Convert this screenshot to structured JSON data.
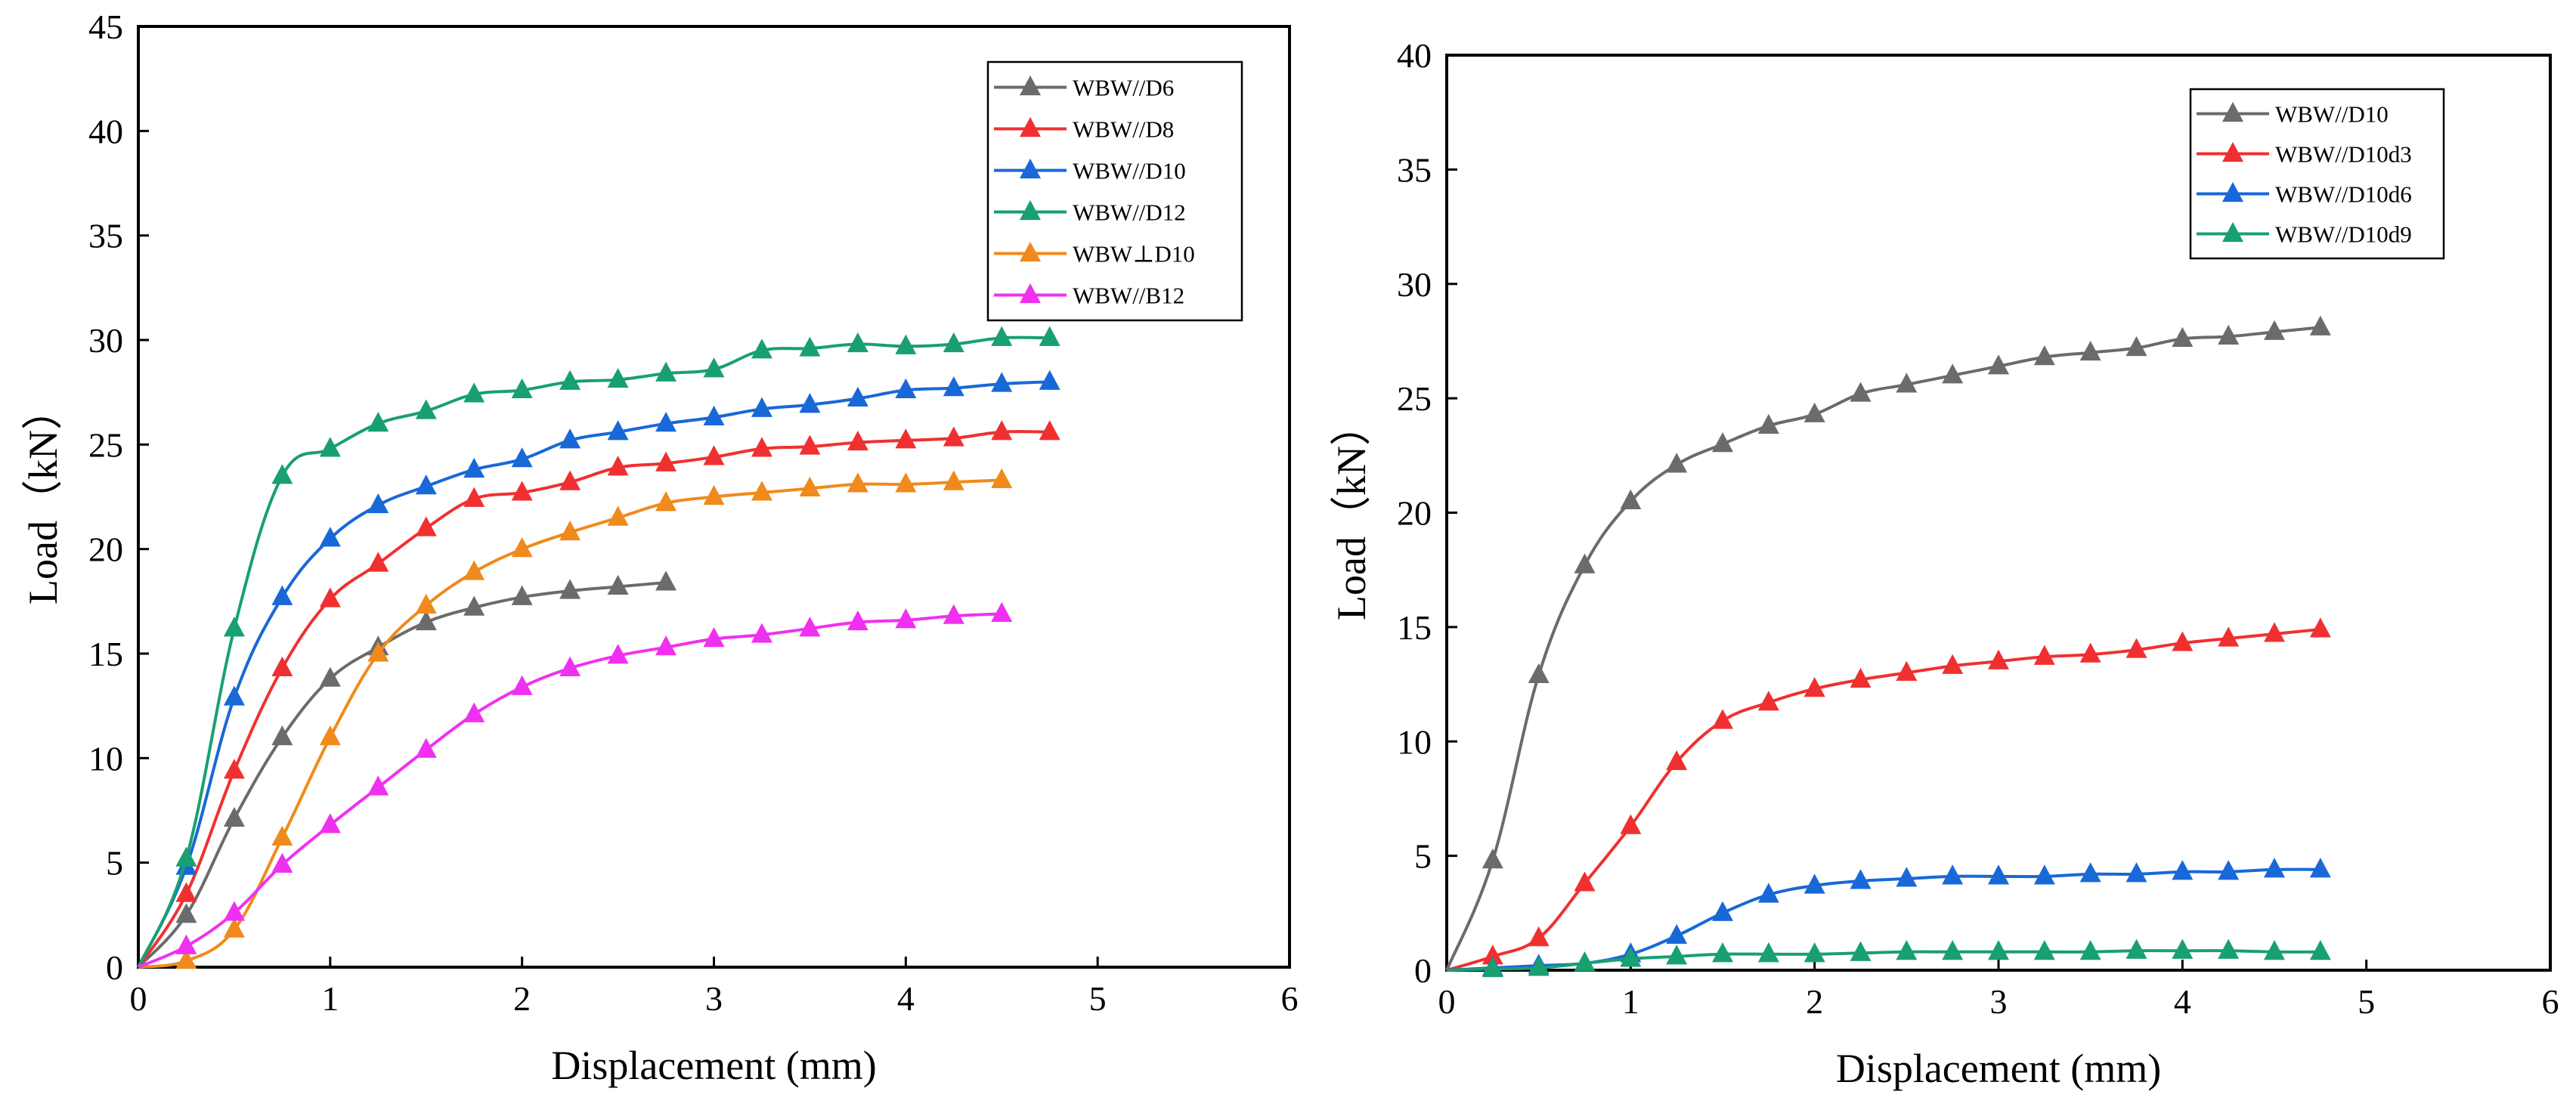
{
  "chart_data": [
    {
      "type": "line",
      "title": "",
      "xlabel": "Displacement (mm)",
      "ylabel": "Load（kN）",
      "xlim": [
        0,
        6
      ],
      "ylim": [
        0,
        45
      ],
      "xticks": [
        0,
        1,
        2,
        3,
        4,
        5,
        6
      ],
      "yticks": [
        0,
        5,
        10,
        15,
        20,
        25,
        30,
        35,
        40,
        45
      ],
      "grid": false,
      "legend_position": "top-right",
      "marker": "triangle",
      "series": [
        {
          "name": "WBW//D6",
          "color": "#6b6b6b",
          "x": [
            0,
            0.25,
            0.5,
            0.75,
            1.0,
            1.25,
            1.5,
            1.75,
            2.0,
            2.25,
            2.5,
            2.75
          ],
          "y": [
            0,
            2.5,
            7.1,
            11.0,
            13.8,
            15.3,
            16.5,
            17.2,
            17.7,
            18.0,
            18.2,
            18.4
          ]
        },
        {
          "name": "WBW//D8",
          "color": "#f03030",
          "x": [
            0,
            0.25,
            0.5,
            0.75,
            1.0,
            1.25,
            1.5,
            1.75,
            2.0,
            2.25,
            2.5,
            2.75,
            3.0,
            3.25,
            3.5,
            3.75,
            4.0,
            4.25,
            4.5,
            4.75
          ],
          "y": [
            0,
            3.5,
            9.4,
            14.3,
            17.6,
            19.3,
            21.0,
            22.4,
            22.7,
            23.2,
            23.9,
            24.1,
            24.4,
            24.8,
            24.9,
            25.1,
            25.2,
            25.3,
            25.6,
            25.6
          ]
        },
        {
          "name": "WBW//D10",
          "color": "#1868d8",
          "x": [
            0,
            0.25,
            0.5,
            0.75,
            1.0,
            1.25,
            1.5,
            1.75,
            2.0,
            2.25,
            2.5,
            2.75,
            3.0,
            3.25,
            3.5,
            3.75,
            4.0,
            4.25,
            4.5,
            4.75
          ],
          "y": [
            0,
            4.8,
            12.9,
            17.7,
            20.5,
            22.1,
            23.0,
            23.8,
            24.3,
            25.2,
            25.6,
            26.0,
            26.3,
            26.7,
            26.9,
            27.2,
            27.6,
            27.7,
            27.9,
            28.0
          ]
        },
        {
          "name": "WBW//D12",
          "color": "#18a070",
          "x": [
            0,
            0.25,
            0.5,
            0.75,
            1.0,
            1.25,
            1.5,
            1.75,
            2.0,
            2.25,
            2.5,
            2.75,
            3.0,
            3.25,
            3.5,
            3.75,
            4.0,
            4.25,
            4.5,
            4.75
          ],
          "y": [
            0,
            5.2,
            16.2,
            23.5,
            24.8,
            26.0,
            26.6,
            27.4,
            27.6,
            28.0,
            28.1,
            28.4,
            28.6,
            29.5,
            29.6,
            29.8,
            29.7,
            29.8,
            30.1,
            30.1
          ]
        },
        {
          "name": "WBW⊥D10",
          "color": "#f08a1c",
          "x": [
            0,
            0.25,
            0.5,
            0.75,
            1.0,
            1.25,
            1.5,
            1.75,
            2.0,
            2.25,
            2.5,
            2.75,
            3.0,
            3.25,
            3.5,
            3.75,
            4.0,
            4.25,
            4.5
          ],
          "y": [
            0,
            0.3,
            1.8,
            6.2,
            11.0,
            15.0,
            17.3,
            18.9,
            20.0,
            20.8,
            21.5,
            22.2,
            22.5,
            22.7,
            22.9,
            23.1,
            23.1,
            23.2,
            23.3
          ]
        },
        {
          "name": "WBW//B12",
          "color": "#f030f0",
          "x": [
            0,
            0.25,
            0.5,
            0.75,
            1.0,
            1.25,
            1.5,
            1.75,
            2.0,
            2.25,
            2.5,
            2.75,
            3.0,
            3.25,
            3.5,
            3.75,
            4.0,
            4.25,
            4.5
          ],
          "y": [
            0,
            1.0,
            2.6,
            4.9,
            6.8,
            8.6,
            10.4,
            12.1,
            13.4,
            14.3,
            14.9,
            15.3,
            15.7,
            15.9,
            16.2,
            16.5,
            16.6,
            16.8,
            16.9
          ]
        }
      ]
    },
    {
      "type": "line",
      "title": "",
      "xlabel": "Displacement (mm)",
      "ylabel": "Load（kN）",
      "xlim": [
        0,
        6
      ],
      "ylim": [
        0,
        40
      ],
      "xticks": [
        0,
        1,
        2,
        3,
        4,
        5,
        6
      ],
      "yticks": [
        0,
        5,
        10,
        15,
        20,
        25,
        30,
        35,
        40
      ],
      "grid": false,
      "legend_position": "top-right",
      "marker": "triangle",
      "series": [
        {
          "name": "WBW//D10",
          "color": "#6b6b6b",
          "x": [
            0,
            0.25,
            0.5,
            0.75,
            1.0,
            1.25,
            1.5,
            1.75,
            2.0,
            2.25,
            2.5,
            2.75,
            3.0,
            3.25,
            3.5,
            3.75,
            4.0,
            4.25,
            4.5,
            4.75
          ],
          "y": [
            0,
            4.8,
            12.9,
            17.7,
            20.5,
            22.1,
            23.0,
            23.8,
            24.3,
            25.2,
            25.6,
            26.0,
            26.4,
            26.8,
            27.0,
            27.2,
            27.6,
            27.7,
            27.9,
            28.1
          ]
        },
        {
          "name": "WBW//D10d3",
          "color": "#f03030",
          "x": [
            0,
            0.25,
            0.5,
            0.75,
            1.0,
            1.25,
            1.5,
            1.75,
            2.0,
            2.25,
            2.5,
            2.75,
            3.0,
            3.25,
            3.5,
            3.75,
            4.0,
            4.25,
            4.5,
            4.75
          ],
          "y": [
            0,
            0.6,
            1.4,
            3.8,
            6.3,
            9.1,
            10.9,
            11.7,
            12.3,
            12.7,
            13.0,
            13.3,
            13.5,
            13.7,
            13.8,
            14.0,
            14.3,
            14.5,
            14.7,
            14.9
          ]
        },
        {
          "name": "WBW//D10d6",
          "color": "#1868d8",
          "x": [
            0,
            0.25,
            0.5,
            0.75,
            1.0,
            1.25,
            1.5,
            1.75,
            2.0,
            2.25,
            2.5,
            2.75,
            3.0,
            3.25,
            3.5,
            3.75,
            4.0,
            4.25,
            4.5,
            4.75
          ],
          "y": [
            0,
            0.1,
            0.2,
            0.3,
            0.7,
            1.5,
            2.5,
            3.3,
            3.7,
            3.9,
            4.0,
            4.1,
            4.1,
            4.1,
            4.2,
            4.2,
            4.3,
            4.3,
            4.4,
            4.4
          ]
        },
        {
          "name": "WBW//D10d9",
          "color": "#18a070",
          "x": [
            0,
            0.25,
            0.5,
            0.75,
            1.0,
            1.25,
            1.5,
            1.75,
            2.0,
            2.25,
            2.5,
            2.75,
            3.0,
            3.25,
            3.5,
            3.75,
            4.0,
            4.25,
            4.5,
            4.75
          ],
          "y": [
            0,
            0.05,
            0.1,
            0.3,
            0.5,
            0.6,
            0.7,
            0.7,
            0.7,
            0.75,
            0.8,
            0.8,
            0.8,
            0.8,
            0.8,
            0.85,
            0.85,
            0.85,
            0.8,
            0.8
          ]
        }
      ]
    }
  ]
}
